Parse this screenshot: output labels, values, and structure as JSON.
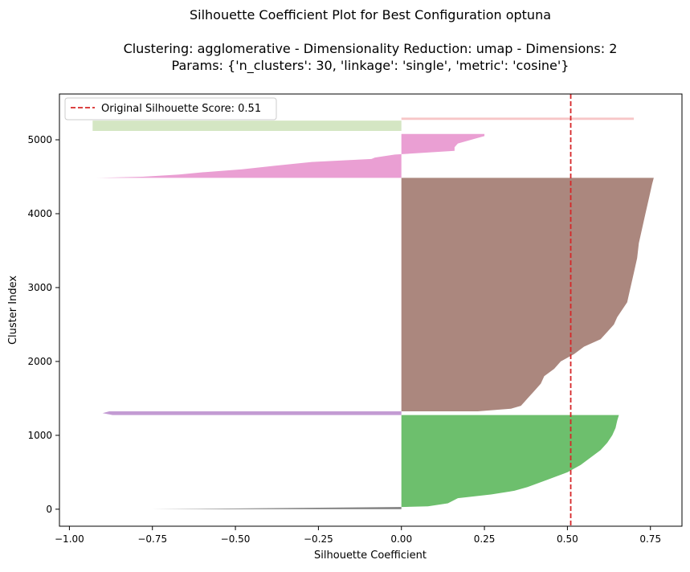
{
  "chart_data": {
    "type": "area",
    "title_lines": [
      "Silhouette Coefficient Plot for Best Configuration optuna",
      "",
      "Clustering: agglomerative - Dimensionality Reduction: umap - Dimensions: 2",
      "Params: {'n_clusters': 30, 'linkage': 'single', 'metric': 'cosine'}"
    ],
    "xlabel": "Silhouette Coefficient",
    "ylabel": "Cluster Index",
    "xlim": [
      -1.03,
      0.845
    ],
    "ylim": [
      -230,
      5620
    ],
    "x_ticks": [
      -1.0,
      -0.75,
      -0.5,
      -0.25,
      0.0,
      0.25,
      0.5,
      0.75
    ],
    "x_tick_labels": [
      "−1.00",
      "−0.75",
      "−0.50",
      "−0.25",
      "0.00",
      "0.25",
      "0.50",
      "0.75"
    ],
    "y_ticks": [
      0,
      1000,
      2000,
      3000,
      4000,
      5000
    ],
    "y_tick_labels": [
      "0",
      "1000",
      "2000",
      "3000",
      "4000",
      "5000"
    ],
    "grid": false,
    "legend": {
      "placement": "top-left",
      "entries": [
        {
          "label": "Original Silhouette Score: 0.51",
          "color": "#d62728",
          "style": "dashed"
        }
      ]
    },
    "reference_line": {
      "axis": "x",
      "value": 0.51,
      "color": "#d62728"
    },
    "series": [
      {
        "color": "#7f7f7f",
        "y_range": [
          0,
          30
        ],
        "profile": [
          [
            0,
            -0.75
          ],
          [
            30,
            0
          ]
        ]
      },
      {
        "color": "#6dbf6d",
        "y_range": [
          30,
          1275
        ],
        "profile": [
          [
            30,
            0
          ],
          [
            40,
            0.08
          ],
          [
            80,
            0.14
          ],
          [
            150,
            0.17
          ],
          [
            200,
            0.27
          ],
          [
            250,
            0.34
          ],
          [
            300,
            0.38
          ],
          [
            400,
            0.44
          ],
          [
            500,
            0.5
          ],
          [
            600,
            0.54
          ],
          [
            700,
            0.57
          ],
          [
            800,
            0.6
          ],
          [
            900,
            0.62
          ],
          [
            1000,
            0.635
          ],
          [
            1100,
            0.645
          ],
          [
            1200,
            0.65
          ],
          [
            1275,
            0.655
          ]
        ]
      },
      {
        "color": "#c39bd3",
        "y_range": [
          1275,
          1325
        ],
        "profile": [
          [
            1275,
            -0.87
          ],
          [
            1300,
            -0.9
          ],
          [
            1325,
            -0.88
          ]
        ]
      },
      {
        "color": "#ab877e",
        "y_range": [
          1325,
          4485
        ],
        "profile": [
          [
            1325,
            0.23
          ],
          [
            1360,
            0.33
          ],
          [
            1400,
            0.36
          ],
          [
            1450,
            0.37
          ],
          [
            1500,
            0.38
          ],
          [
            1600,
            0.4
          ],
          [
            1700,
            0.42
          ],
          [
            1800,
            0.43
          ],
          [
            1900,
            0.46
          ],
          [
            2000,
            0.48
          ],
          [
            2100,
            0.52
          ],
          [
            2200,
            0.55
          ],
          [
            2300,
            0.6
          ],
          [
            2400,
            0.62
          ],
          [
            2500,
            0.64
          ],
          [
            2600,
            0.65
          ],
          [
            2800,
            0.68
          ],
          [
            3000,
            0.69
          ],
          [
            3200,
            0.7
          ],
          [
            3400,
            0.71
          ],
          [
            3600,
            0.715
          ],
          [
            3800,
            0.725
          ],
          [
            4000,
            0.735
          ],
          [
            4200,
            0.745
          ],
          [
            4400,
            0.755
          ],
          [
            4485,
            0.76
          ]
        ]
      },
      {
        "color": "#ea9fd3",
        "y_range": [
          4485,
          5080
        ],
        "profile": [
          [
            4485,
            -0.92
          ],
          [
            4500,
            -0.78
          ],
          [
            4530,
            -0.67
          ],
          [
            4560,
            -0.6
          ],
          [
            4600,
            -0.48
          ],
          [
            4650,
            -0.38
          ],
          [
            4700,
            -0.27
          ],
          [
            4740,
            -0.09
          ],
          [
            4760,
            -0.08
          ],
          [
            4800,
            -0.02
          ],
          [
            4850,
            0.16
          ],
          [
            4900,
            0.16
          ],
          [
            4950,
            0.17
          ],
          [
            5000,
            0.21
          ],
          [
            5050,
            0.25
          ],
          [
            5080,
            0.25
          ]
        ]
      },
      {
        "color": "#d4e6c3",
        "y_range": [
          5120,
          5260
        ],
        "profile": [
          [
            5120,
            -0.93
          ],
          [
            5260,
            -0.93
          ]
        ]
      },
      {
        "color": "#f7c6c7",
        "y_range": [
          5270,
          5300
        ],
        "profile": [
          [
            5270,
            0.7
          ],
          [
            5300,
            0.7
          ]
        ]
      }
    ]
  }
}
